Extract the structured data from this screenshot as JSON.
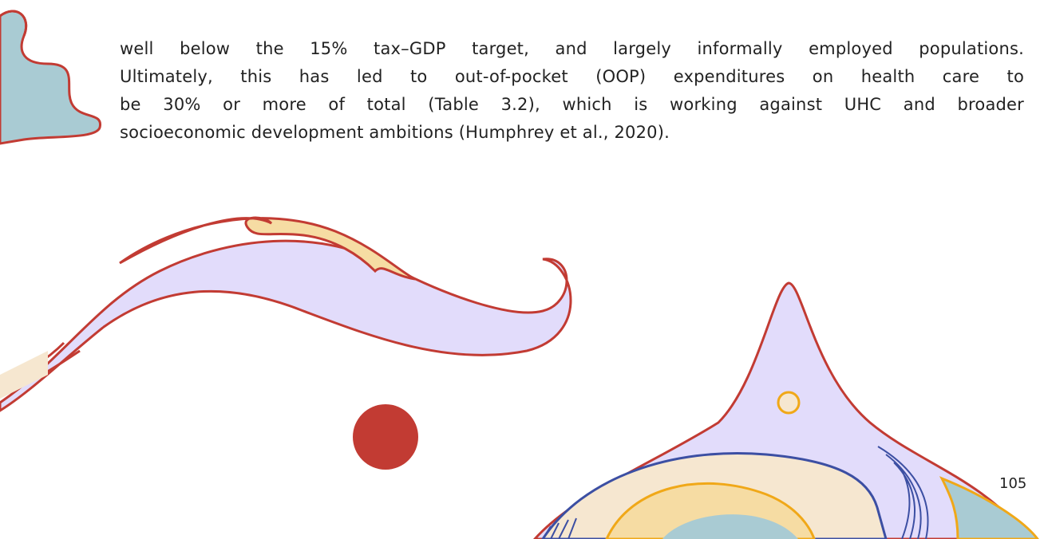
{
  "body": {
    "lines": [
      "well below the 15% tax–GDP target, and largely informally employed populations.",
      "Ultimately, this has led to out-of-pocket (OOP) expenditures on health care to",
      "be 30% or more of total (Table 3.2), which is working against UHC and broader",
      "socioeconomic development ambitions (Humphrey et al., 2020)."
    ]
  },
  "footer": {
    "page_number": "105"
  }
}
